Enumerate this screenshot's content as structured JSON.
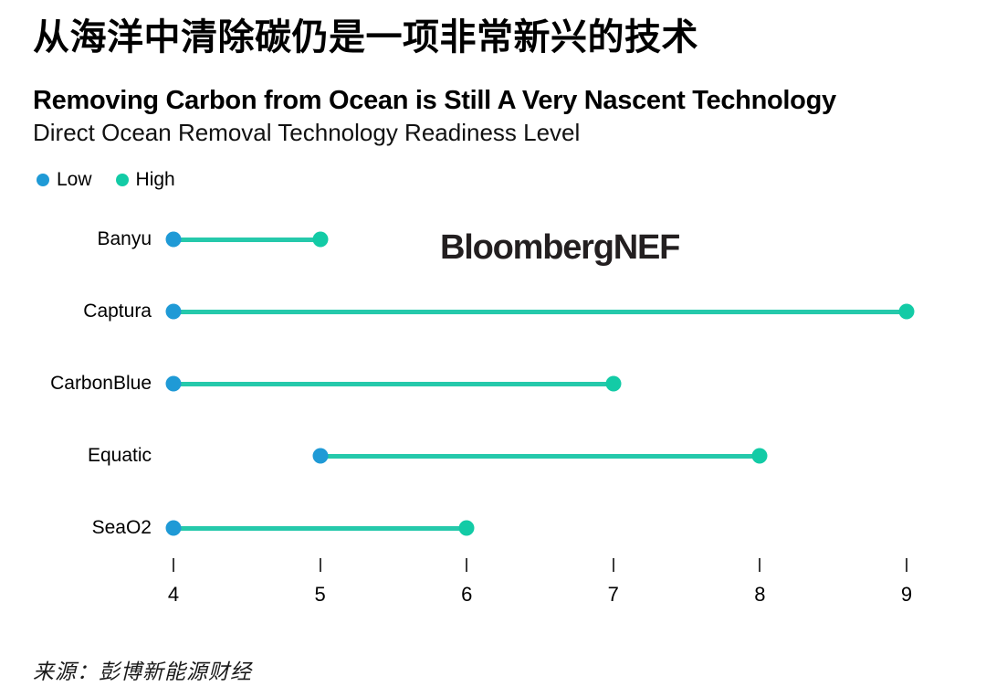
{
  "header": {
    "title_zh": "从海洋中清除碳仍是一项非常新兴的技术",
    "title_en": "Removing Carbon from Ocean is Still A Very Nascent Technology",
    "subtitle": "Direct Ocean Removal Technology Readiness Level"
  },
  "legend": {
    "items": [
      {
        "label": "Low",
        "color": "#1f9ad6"
      },
      {
        "label": "High",
        "color": "#13cba6"
      }
    ]
  },
  "branding": {
    "logo": "BloombergNEF",
    "color": "#231f20"
  },
  "chart_data": {
    "type": "scatter",
    "variant": "dumbbell",
    "title": "Removing Carbon from Ocean is Still A Very Nascent Technology",
    "subtitle": "Direct Ocean Removal Technology Readiness Level",
    "categories": [
      "Banyu",
      "Captura",
      "CarbonBlue",
      "Equatic",
      "SeaO2"
    ],
    "series": [
      {
        "name": "Low",
        "color": "#1f9ad6",
        "values": [
          4,
          4,
          4,
          5,
          4
        ]
      },
      {
        "name": "High",
        "color": "#13cba6",
        "values": [
          5,
          9,
          7,
          8,
          6
        ]
      }
    ],
    "connector_color": "#25c9ab",
    "x_ticks": [
      4,
      5,
      6,
      7,
      8,
      9
    ],
    "xlim": [
      4,
      9
    ],
    "xlabel": "",
    "ylabel": "",
    "grid": false,
    "legend_position": "top-left"
  },
  "footer": {
    "source": "来源：彭博新能源财经"
  }
}
